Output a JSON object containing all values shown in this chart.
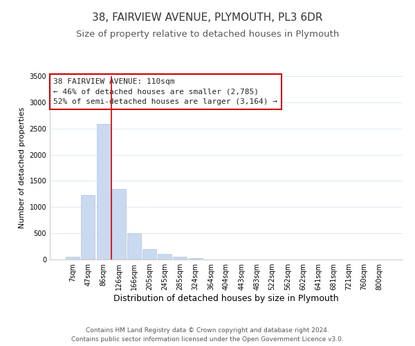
{
  "title": "38, FAIRVIEW AVENUE, PLYMOUTH, PL3 6DR",
  "subtitle": "Size of property relative to detached houses in Plymouth",
  "xlabel": "Distribution of detached houses by size in Plymouth",
  "ylabel": "Number of detached properties",
  "bar_labels": [
    "7sqm",
    "47sqm",
    "86sqm",
    "126sqm",
    "166sqm",
    "205sqm",
    "245sqm",
    "285sqm",
    "324sqm",
    "364sqm",
    "404sqm",
    "443sqm",
    "483sqm",
    "522sqm",
    "562sqm",
    "602sqm",
    "641sqm",
    "681sqm",
    "721sqm",
    "760sqm",
    "800sqm"
  ],
  "bar_values": [
    50,
    1230,
    2590,
    1350,
    500,
    195,
    110,
    50,
    25,
    0,
    0,
    0,
    0,
    0,
    0,
    0,
    0,
    0,
    0,
    0,
    0
  ],
  "bar_color": "#c9d9ef",
  "bar_edge_color": "#b0c4de",
  "vline_color": "#cc0000",
  "vline_x": 2.5,
  "ylim": [
    0,
    3500
  ],
  "annotation_title": "38 FAIRVIEW AVENUE: 110sqm",
  "annotation_line1": "← 46% of detached houses are smaller (2,785)",
  "annotation_line2": "52% of semi-detached houses are larger (3,164) →",
  "annotation_box_color": "#ffffff",
  "annotation_box_edge": "#cc0000",
  "footer_line1": "Contains HM Land Registry data © Crown copyright and database right 2024.",
  "footer_line2": "Contains public sector information licensed under the Open Government Licence v3.0.",
  "title_fontsize": 11,
  "subtitle_fontsize": 9.5,
  "xlabel_fontsize": 9,
  "ylabel_fontsize": 8,
  "tick_fontsize": 7,
  "footer_fontsize": 6.5,
  "annotation_fontsize": 8
}
